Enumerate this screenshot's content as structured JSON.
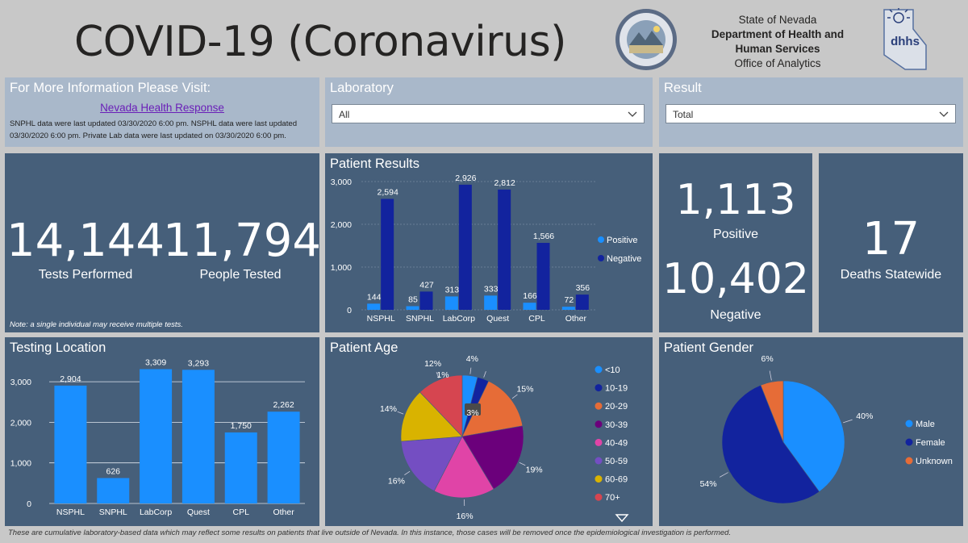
{
  "header": {
    "title": "COVID-19 (Coronavirus)",
    "agency_line1": "State of Nevada",
    "agency_line2": "Department of Health and",
    "agency_line3": "Human Services",
    "agency_line4": "Office of Analytics",
    "logo_text": "dhhs"
  },
  "info": {
    "title": "For More Information Please Visit:",
    "link": "Nevada Health Response",
    "text": "SNPHL data were last updated 03/30/2020 6:00 pm. NSPHL data were last updated 03/30/2020 6:00 pm.  Private Lab data were last updated on 03/30/2020 6:00 pm."
  },
  "laboratory_filter": {
    "title": "Laboratory",
    "value": "All"
  },
  "result_filter": {
    "title": "Result",
    "value": "Total"
  },
  "tests": {
    "tests_performed": "14,144",
    "tests_performed_label": "Tests Performed",
    "people_tested": "11,794",
    "people_tested_label": "People Tested",
    "note": "Note: a single individual may receive multiple tests."
  },
  "results_kpi": {
    "positive": "1,113",
    "positive_label": "Positive",
    "negative": "10,402",
    "negative_label": "Negative"
  },
  "deaths": {
    "value": "17",
    "label": "Deaths Statewide"
  },
  "footer": "These are cumulative laboratory-based data which may reflect some results on patients that live outside of Nevada. In this instance, those cases will be removed once the epidemiological investigation is performed.",
  "colors": {
    "positive": "#1a8fff",
    "negative": "#12239e",
    "panel": "#465f7a"
  },
  "chart_data": [
    {
      "id": "patient_results",
      "type": "bar",
      "title": "Patient Results",
      "categories": [
        "NSPHL",
        "SNPHL",
        "LabCorp",
        "Quest",
        "CPL",
        "Other"
      ],
      "series": [
        {
          "name": "Positive",
          "values": [
            144,
            85,
            313,
            333,
            166,
            72
          ],
          "color": "#1a8fff"
        },
        {
          "name": "Negative",
          "values": [
            2594,
            427,
            2926,
            2812,
            1566,
            356
          ],
          "color": "#12239e"
        }
      ],
      "yticks": [
        "0",
        "1,000",
        "2,000",
        "3,000"
      ],
      "ylim": [
        0,
        3000
      ]
    },
    {
      "id": "testing_location",
      "type": "bar",
      "title": "Testing Location",
      "categories": [
        "NSPHL",
        "SNPHL",
        "LabCorp",
        "Quest",
        "CPL",
        "Other"
      ],
      "values": [
        2904,
        626,
        3309,
        3293,
        1750,
        2262
      ],
      "labels": [
        "2,904",
        "626",
        "3,309",
        "3,293",
        "1,750",
        "2,262"
      ],
      "yticks": [
        "0",
        "1,000",
        "2,000",
        "3,000"
      ],
      "ylim": [
        0,
        3300
      ],
      "color": "#1a8fff"
    },
    {
      "id": "patient_age",
      "type": "pie",
      "title": "Patient Age",
      "labels": [
        "<10",
        "10-19",
        "20-29",
        "30-39",
        "40-49",
        "50-59",
        "60-69",
        "70+"
      ],
      "values": [
        4,
        3,
        15,
        19,
        16,
        16,
        14,
        12
      ],
      "data_labels": [
        "4%",
        "3%",
        "15%",
        "19%",
        "16%",
        "16%",
        "14%",
        "12%"
      ],
      "extra_label": "1%",
      "colors": [
        "#1a8fff",
        "#12239e",
        "#e66c37",
        "#6b007b",
        "#e044a7",
        "#744ec2",
        "#d9b300",
        "#d64550"
      ]
    },
    {
      "id": "patient_gender",
      "type": "pie",
      "title": "Patient Gender",
      "labels": [
        "Male",
        "Female",
        "Unknown"
      ],
      "values": [
        40,
        54,
        6
      ],
      "data_labels": [
        "40%",
        "54%",
        "6%"
      ],
      "colors": [
        "#1a8fff",
        "#12239e",
        "#e66c37"
      ]
    }
  ]
}
